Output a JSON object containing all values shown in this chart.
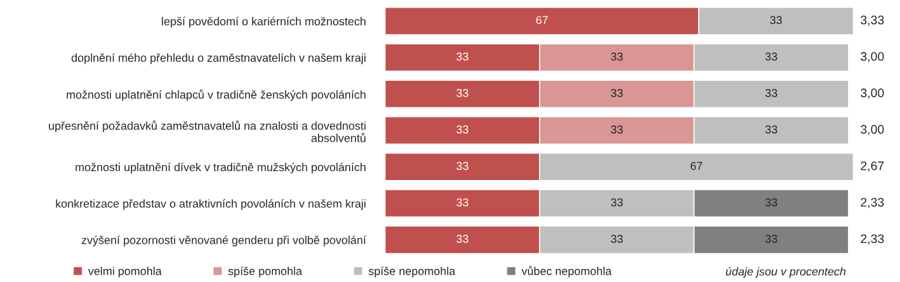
{
  "chart_data": {
    "type": "bar",
    "orientation": "horizontal",
    "stacked": true,
    "data_labels": true,
    "legend": "bottom",
    "categories": [
      "lepší povědomí o kariérních možnostech",
      "doplnění mého přehledu o zaměstnavatelích v našem kraji",
      "možnosti uplatnění chlapců v tradičně ženských povoláních",
      "upřesnění požadavků zaměstnavatelů na znalosti a dovednosti\nabsolventů",
      "možnosti uplatnění dívek v tradičně mužských povoláních",
      "konkretizace představ o atraktivních povoláních v našem kraji",
      "zvýšení pozornosti věnované genderu při volbě povolání"
    ],
    "series": [
      {
        "name": "velmi pomohla",
        "color": "#c0504d",
        "values": [
          67,
          33,
          33,
          33,
          33,
          33,
          33
        ]
      },
      {
        "name": "spíše pomohla",
        "color": "#d99694",
        "values": [
          null,
          33,
          33,
          33,
          null,
          null,
          null
        ]
      },
      {
        "name": "spíše nepomohla",
        "color": "#bfbfbf",
        "values": [
          33,
          33,
          33,
          33,
          67,
          33,
          33
        ]
      },
      {
        "name": "vůbec nepomohla",
        "color": "#808080",
        "values": [
          null,
          null,
          null,
          null,
          null,
          33,
          33
        ]
      }
    ],
    "annotations": [
      "3,33",
      "3,00",
      "3,00",
      "3,00",
      "2,67",
      "2,33",
      "2,33",
      "údaje jsou v procentech"
    ]
  }
}
